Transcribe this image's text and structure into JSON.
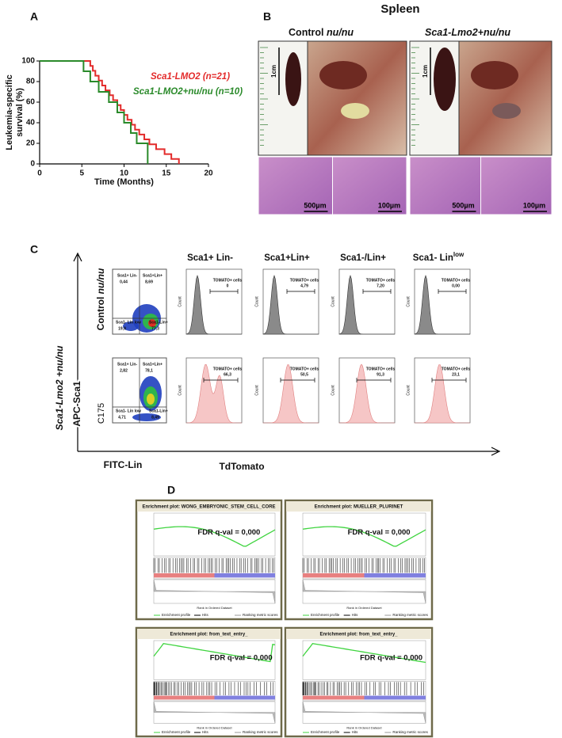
{
  "chart_data": {
    "type": "line",
    "panel_label": "A",
    "ylabel": [
      "Leukemia-specific",
      "survival (%)"
    ],
    "xlabel": "Time (Months)",
    "xlim": [
      0,
      20
    ],
    "xticks": [
      0,
      5,
      10,
      15,
      20
    ],
    "ylim": [
      0,
      100
    ],
    "yticks": [
      0,
      20,
      40,
      60,
      80,
      100
    ],
    "series": [
      {
        "name": "Sca1-LMO2 (n=21)",
        "color": "#e32b2b",
        "x": [
          0,
          6,
          6.3,
          6.6,
          7,
          7.4,
          7.8,
          8.3,
          8.7,
          9.2,
          9.6,
          10,
          10.4,
          10.9,
          11.3,
          11.8,
          12.4,
          13,
          13.8,
          14.8,
          15.6,
          16.5
        ],
        "values": [
          100,
          95.2,
          90.5,
          85.7,
          81,
          76.2,
          71.4,
          66.7,
          61.9,
          57.1,
          52.4,
          47.6,
          42.9,
          38.1,
          33.3,
          28.6,
          23.8,
          19,
          14.3,
          9.5,
          4.8,
          0
        ]
      },
      {
        "name": "Sca1-LMO2+nu/nu (n=10)",
        "color": "#2a8a2a",
        "x": [
          0,
          5.2,
          6,
          7,
          8.2,
          9.2,
          10,
          10.8,
          11.5,
          12.8
        ],
        "values": [
          100,
          90,
          80,
          70,
          60,
          50,
          40,
          30,
          20,
          0
        ]
      }
    ]
  },
  "panel_b": {
    "label": "B",
    "title": "Spleen",
    "groups": [
      {
        "prefix": "Control",
        "italic": "nu/nu"
      },
      {
        "italic": "Sca1-Lmo2+nu/nu"
      }
    ],
    "ruler": "1cm",
    "scale_bars": [
      "500µm",
      "100µm"
    ]
  },
  "panel_c": {
    "label": "C",
    "columns": [
      "Sca1+ Lin-",
      "Sca1+Lin+",
      "Sca1-/Lin+",
      {
        "text": "Sca1- Lin",
        "sup": "low"
      }
    ],
    "gate_labels": [
      "Sca1+ Lin-",
      "Sca1+Lin+",
      "Sca1- Lin low",
      "Sca1-Lin+"
    ],
    "rows": [
      {
        "name": {
          "prefix": "Control",
          "italic": "nu/nu"
        },
        "gates": [
          "0,44",
          "8,69",
          "19,9",
          "77,3"
        ],
        "tomato": [
          "0",
          "4,79",
          "7,20",
          "0,00"
        ]
      },
      {
        "name": {
          "italic": "Sca1-Lmo2 +nu/nu"
        },
        "gates": [
          "2,82",
          "78,1",
          "4,71",
          "8,49"
        ],
        "tomato": [
          "66,3",
          "50,5",
          "91,3",
          "23,1"
        ]
      }
    ],
    "tomato_label": "TOMATO+ cells",
    "count_label": "Count",
    "y_axis": "APC-Sca1",
    "y_marker": "C175",
    "x_axis_left": "FITC-Lin",
    "x_axis_right": "TdTomato"
  },
  "panel_d": {
    "label": "D",
    "plots": [
      {
        "title": "Enrichment plot: WONG_EMBRYONIC_STEM_CELL_CORE",
        "fdr": "FDR q-val = 0,000"
      },
      {
        "title": "Enrichment plot: MUELLER_PLURINET",
        "fdr": "FDR q-val = 0,000"
      },
      {
        "title": "Enrichment plot: from_text_entry_",
        "fdr": "FDR q-val = 0,000"
      },
      {
        "title": "Enrichment plot: from_text_entry_",
        "fdr": "FDR q-val = 0,000"
      }
    ],
    "legend": [
      "Enrichment profile",
      "Hits",
      "Ranking metric scores"
    ],
    "xlabel": "Rank in Ordered Dataset"
  }
}
